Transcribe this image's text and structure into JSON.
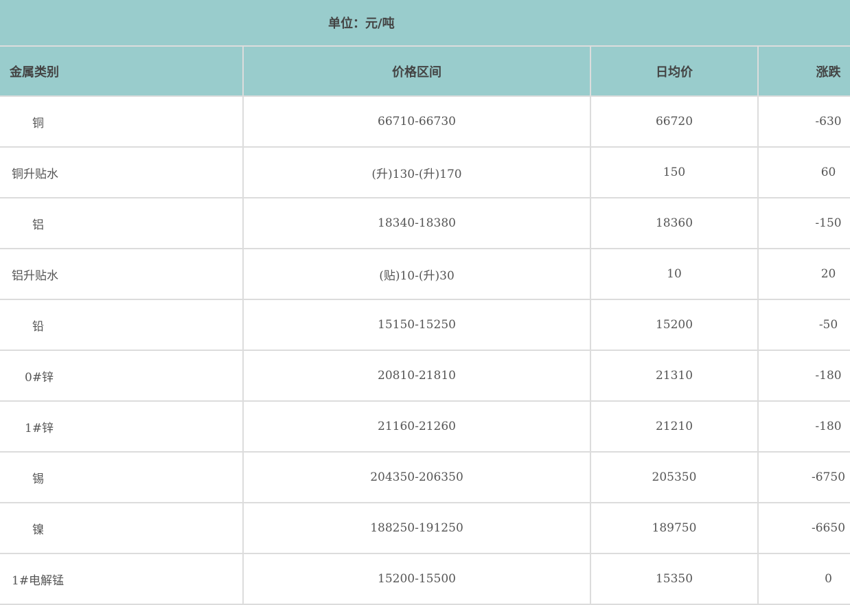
{
  "unit": "单位：元/吨",
  "headers": [
    "金属类别",
    "价格区间",
    "日均价",
    "涨跌"
  ],
  "rows": [
    {
      "name": "铜",
      "range": "66710-66730",
      "avg": "66720",
      "change": "-630"
    },
    {
      "name": "铜升贴水",
      "range": "(升)130-(升)170",
      "avg": "150",
      "change": "60"
    },
    {
      "name": "铝",
      "range": "18340-18380",
      "avg": "18360",
      "change": "-150"
    },
    {
      "name": "铝升贴水",
      "range": "(贴)10-(升)30",
      "avg": "10",
      "change": "20"
    },
    {
      "name": "铅",
      "range": "15150-15250",
      "avg": "15200",
      "change": "-50"
    },
    {
      "name": "0#锌",
      "range": "20810-21810",
      "avg": "21310",
      "change": "-180"
    },
    {
      "name": "1#锌",
      "range": "21160-21260",
      "avg": "21210",
      "change": "-180"
    },
    {
      "name": "锡",
      "range": "204350-206350",
      "avg": "205350",
      "change": "-6750"
    },
    {
      "name": "镍",
      "range": "188250-191250",
      "avg": "189750",
      "change": "-6650"
    },
    {
      "name": "1#电解锰",
      "range": "15200-15500",
      "avg": "15350",
      "change": "0"
    }
  ]
}
